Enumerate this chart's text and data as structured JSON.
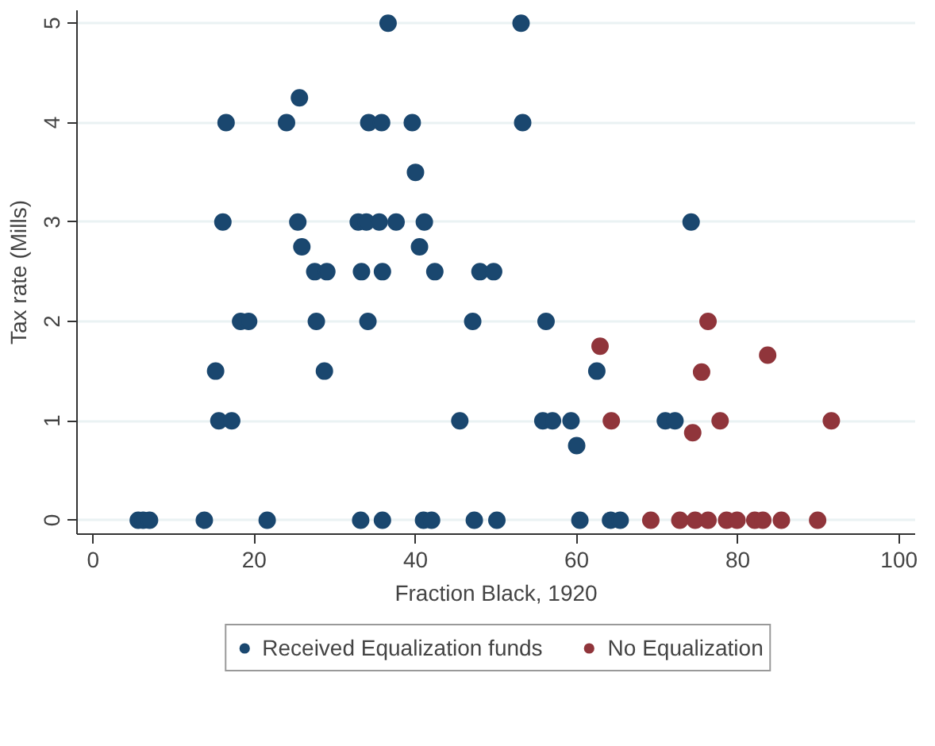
{
  "chart_data": {
    "type": "scatter",
    "xlabel": "Fraction Black, 1920",
    "ylabel": "Tax rate (Mills)",
    "xlim": [
      -2,
      102
    ],
    "ylim": [
      -0.14,
      5.13
    ],
    "xticks": [
      0,
      20,
      40,
      60,
      80,
      100
    ],
    "yticks": [
      0,
      1,
      2,
      3,
      4,
      5
    ],
    "grid": "y",
    "legend": "bottom",
    "marker": "circle",
    "series": [
      {
        "name": "Received Equalization funds",
        "color": "#1a476f",
        "x": [
          5.6,
          6.2,
          7.0,
          13.8,
          21.6,
          33.2,
          35.9,
          41.0,
          42.0,
          47.3,
          50.1,
          60.4,
          64.2,
          65.4,
          15.6,
          17.2,
          45.5,
          55.8,
          57.0,
          59.3,
          60.0,
          71.0,
          72.2,
          62.5,
          15.2,
          28.7,
          18.3,
          19.3,
          27.7,
          34.1,
          47.1,
          56.2,
          27.5,
          29.0,
          33.3,
          35.9,
          42.4,
          48.0,
          49.7,
          25.9,
          40.5,
          16.1,
          25.4,
          32.9,
          33.9,
          35.5,
          37.6,
          41.1,
          74.2,
          40.0,
          16.5,
          24.0,
          34.2,
          35.8,
          39.6,
          53.3,
          25.6,
          36.6,
          53.1
        ],
        "values": [
          0,
          0,
          0,
          0,
          0,
          0,
          0,
          0,
          0,
          0,
          0,
          0,
          0,
          0,
          1,
          1,
          1,
          1,
          1,
          1,
          0.75,
          1,
          1,
          1.5,
          1.5,
          1.5,
          2,
          2,
          2,
          2,
          2,
          2,
          2.5,
          2.5,
          2.5,
          2.5,
          2.5,
          2.5,
          2.5,
          2.75,
          2.75,
          3,
          3,
          3,
          3,
          3,
          3,
          3,
          3,
          3.5,
          4,
          4,
          4,
          4,
          4,
          4,
          4.25,
          5,
          5
        ]
      },
      {
        "name": "No Equalization",
        "color": "#90353b",
        "x": [
          69.2,
          72.8,
          74.7,
          76.3,
          78.6,
          79.9,
          82.1,
          83.1,
          85.4,
          89.9,
          77.8,
          91.6,
          74.4,
          64.3,
          62.9,
          75.5,
          83.7,
          76.3
        ],
        "values": [
          0,
          0,
          0,
          0,
          0,
          0,
          0,
          0,
          0,
          0,
          1,
          1,
          0.88,
          1,
          1.75,
          1.49,
          1.66,
          2
        ]
      }
    ]
  }
}
